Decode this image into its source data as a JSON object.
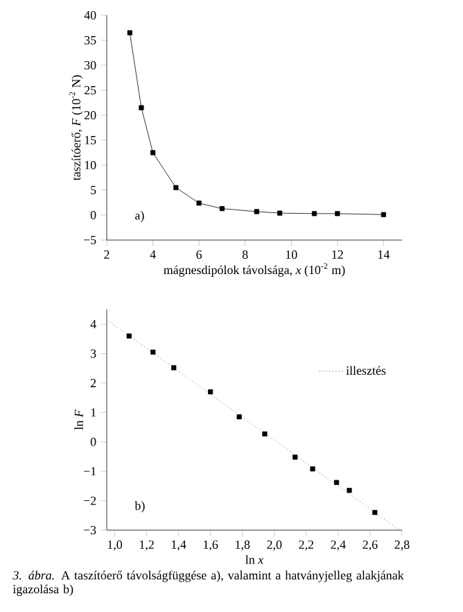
{
  "chart_data": [
    {
      "type": "line",
      "xlabel": "mágnesdipólok távolsága, *x* (10$^{-2}$ m)",
      "ylabel": "taszítóerő, *F* (10$^{-2}$ N)",
      "x": [
        3,
        3.5,
        4,
        5,
        6,
        7,
        8.5,
        9.5,
        11,
        12,
        14
      ],
      "values": [
        36.5,
        21.5,
        12.5,
        5.5,
        2.4,
        1.3,
        0.7,
        0.4,
        0.3,
        0.3,
        0.1
      ],
      "color": "#000000",
      "marker": "square",
      "line_style": "solid",
      "xlim": [
        2,
        14.8
      ],
      "ylim": [
        -5,
        40
      ],
      "xticks": [
        2,
        4,
        6,
        8,
        10,
        12,
        14
      ],
      "yticks": [
        {
          "value": -5,
          "label": "−5"
        },
        0,
        5,
        10,
        15,
        20,
        25,
        30,
        35,
        40
      ],
      "annotations": [
        "a)"
      ]
    },
    {
      "type": "scatter",
      "xlabel": "ln *x*",
      "ylabel": "ln *F*",
      "series": [
        {
          "type": "scatter",
          "color": "#000000",
          "marker": "square",
          "x": [
            1.09,
            1.24,
            1.37,
            1.6,
            1.78,
            1.94,
            2.13,
            2.24,
            2.39,
            2.47,
            2.63
          ],
          "values": [
            3.6,
            3.05,
            2.52,
            1.7,
            0.85,
            0.27,
            -0.52,
            -0.92,
            -1.38,
            -1.65,
            -2.4
          ]
        },
        {
          "type": "line",
          "name": "illesztés",
          "color": "#000000",
          "marker": "none",
          "line_style": "dotted",
          "x": [
            0.95,
            2.78
          ],
          "values": [
            4.15,
            -2.98
          ]
        }
      ],
      "legend": "right",
      "xlim": [
        0.95,
        2.8
      ],
      "ylim": [
        -3,
        4.5
      ],
      "xticks": [
        {
          "value": 1.0,
          "label": "1,0"
        },
        {
          "value": 1.2,
          "label": "1,2"
        },
        {
          "value": 1.4,
          "label": "1,4"
        },
        {
          "value": 1.6,
          "label": "1,6"
        },
        {
          "value": 1.8,
          "label": "1,8"
        },
        {
          "value": 2.0,
          "label": "2,0"
        },
        {
          "value": 2.2,
          "label": "2,2"
        },
        {
          "value": 2.4,
          "label": "2,4"
        },
        {
          "value": 2.6,
          "label": "2,6"
        },
        {
          "value": 2.8,
          "label": "2,8"
        }
      ],
      "yticks": [
        {
          "value": -3,
          "label": "−3"
        },
        {
          "value": -2,
          "label": "−2"
        },
        {
          "value": -1,
          "label": "−1"
        },
        0,
        1,
        2,
        3,
        4
      ],
      "annotations": [
        "b)",
        "*3. ábra.* A taszítóerő távolságfüggése a), valamint a hatványjelleg alakjának igazolása b)"
      ]
    }
  ]
}
